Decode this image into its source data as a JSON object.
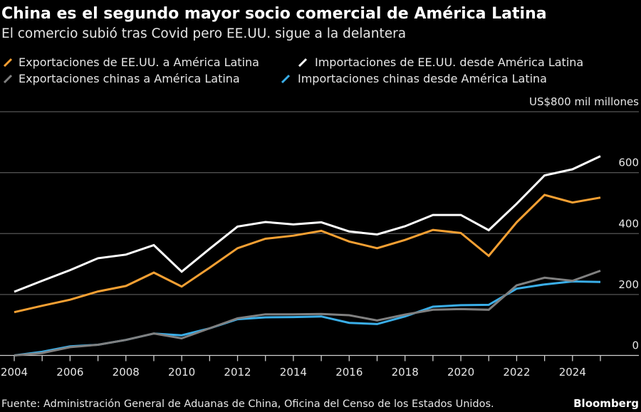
{
  "chart_data": {
    "type": "line",
    "title": "China es el segundo mayor socio comercial de América Latina",
    "subtitle": "El comercio subió tras Covid pero EE.UU. sigue a la delantera",
    "unit_label": "US$800 mil millones",
    "x": [
      2004,
      2005,
      2006,
      2007,
      2008,
      2009,
      2010,
      2011,
      2012,
      2013,
      2014,
      2015,
      2016,
      2017,
      2018,
      2019,
      2020,
      2021,
      2022,
      2023,
      2024,
      2025
    ],
    "x_tick_labels": [
      "2004",
      "2006",
      "2008",
      "2010",
      "2012",
      "2014",
      "2016",
      "2018",
      "2020",
      "2022",
      "2024"
    ],
    "y_tick_labels": [
      "0",
      "200",
      "400",
      "600"
    ],
    "ylim": [
      0,
      800
    ],
    "xlim": [
      2004,
      2025
    ],
    "grid": true,
    "legend_position": "top",
    "series": [
      {
        "name": "Exportaciones de EE.UU. a América Latina",
        "color": "#f5a033",
        "values": [
          142,
          163,
          183,
          210,
          228,
          272,
          226,
          288,
          352,
          383,
          393,
          409,
          374,
          352,
          379,
          412,
          402,
          327,
          437,
          527,
          502,
          518
        ]
      },
      {
        "name": "Importaciones de EE.UU. desde América Latina",
        "color": "#ffffff",
        "values": [
          209,
          245,
          280,
          319,
          331,
          362,
          275,
          350,
          423,
          438,
          430,
          437,
          407,
          397,
          424,
          461,
          461,
          411,
          498,
          591,
          611,
          654
        ]
      },
      {
        "name": "Exportaciones chinas a América Latina",
        "color": "#808080",
        "values": [
          0,
          8,
          27,
          35,
          51,
          72,
          56,
          89,
          122,
          135,
          135,
          136,
          132,
          115,
          134,
          150,
          152,
          150,
          230,
          255,
          245,
          278
        ]
      },
      {
        "name": "Importaciones chinas desde América Latina",
        "color": "#3aaee8",
        "values": [
          0,
          12,
          30,
          35,
          51,
          72,
          66,
          89,
          119,
          125,
          126,
          128,
          107,
          103,
          128,
          160,
          165,
          166,
          219,
          233,
          243,
          241
        ]
      }
    ]
  },
  "footer": {
    "source": "Fuente: Administración General de Aduanas de China, Oficina del Censo de los Estados Unidos.",
    "brand": "Bloomberg"
  }
}
